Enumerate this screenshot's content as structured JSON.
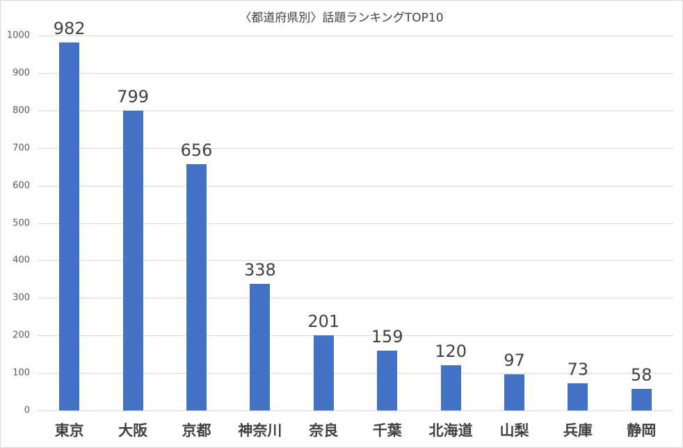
{
  "chart_data": {
    "type": "bar",
    "title": "〈都道府県別〉話題ランキングTOP10",
    "xlabel": "",
    "ylabel": "",
    "categories": [
      "東京",
      "大阪",
      "京都",
      "神奈川",
      "奈良",
      "千葉",
      "北海道",
      "山梨",
      "兵庫",
      "静岡"
    ],
    "values": [
      982,
      799,
      656,
      338,
      201,
      159,
      120,
      97,
      73,
      58
    ],
    "ylim": [
      0,
      1000
    ],
    "yticks": [
      0,
      100,
      200,
      300,
      400,
      500,
      600,
      700,
      800,
      900,
      1000
    ],
    "grid": true,
    "legend": null,
    "data_labels": true,
    "bar_color": "#4472C4"
  }
}
